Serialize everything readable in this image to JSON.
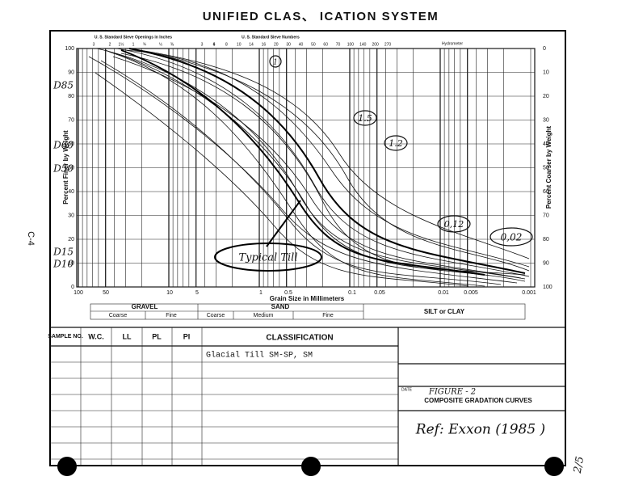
{
  "title": "UNIFIED CLAS、 ICATION SYSTEM",
  "side_label": "C-4",
  "page_label": "2/5",
  "top_axis": {
    "openings_label": "U. S. Standard Sieve Openings in Inches",
    "numbers_label": "U. S. Standard Sieve Numbers",
    "hydrometer_label": "Hydrometer",
    "openings": [
      "3",
      "2",
      "1½",
      "1",
      "¾",
      "½",
      "⅜",
      "3",
      "4"
    ],
    "numbers": [
      "6",
      "8",
      "10",
      "14",
      "16",
      "20",
      "30",
      "40",
      "50",
      "60",
      "70",
      "100",
      "140",
      "200",
      "270"
    ]
  },
  "left_axis": {
    "label": "Percent Finer by Weight",
    "ticks": [
      100,
      90,
      80,
      70,
      60,
      50,
      40,
      30,
      20,
      10,
      0
    ]
  },
  "right_axis": {
    "label": "Percent Coarser by Weight",
    "ticks": [
      0,
      10,
      20,
      30,
      40,
      50,
      60,
      70,
      80,
      90,
      100
    ]
  },
  "bottom_axis": {
    "label": "Grain Size in Millimeters",
    "ticks": [
      "100",
      "50",
      "10",
      "5",
      "1",
      "0.5",
      "0.1",
      "0.05",
      "0.01",
      "0.005",
      "0.001"
    ]
  },
  "handwritten": {
    "d_labels": [
      "D85",
      "D60",
      "D50",
      "D15",
      "D10"
    ],
    "curve_labels": [
      "1",
      "1.5",
      "1.2",
      "0,12",
      "0,02"
    ],
    "typical": "Typical Till"
  },
  "soil_bands": {
    "gravel": "GRAVEL",
    "gravel_parts": [
      "Coarse",
      "Fine"
    ],
    "sand": "SAND",
    "sand_parts": [
      "Coarse",
      "Medium",
      "Fine"
    ],
    "silt": "SILT or CLAY"
  },
  "table": {
    "headers": [
      "SAMPLE NO.",
      "W.C.",
      "LL",
      "PL",
      "PI",
      "CLASSIFICATION"
    ],
    "rows": [
      [
        "",
        "",
        "",
        "",
        "",
        "Glacial Till  SM-SP, SM"
      ]
    ]
  },
  "figure": {
    "date_label": "DATE",
    "number": "FIGURE - 2",
    "caption": "COMPOSITE GRADATION CURVES",
    "reference": "Ref: Exxon (1985 )"
  }
}
